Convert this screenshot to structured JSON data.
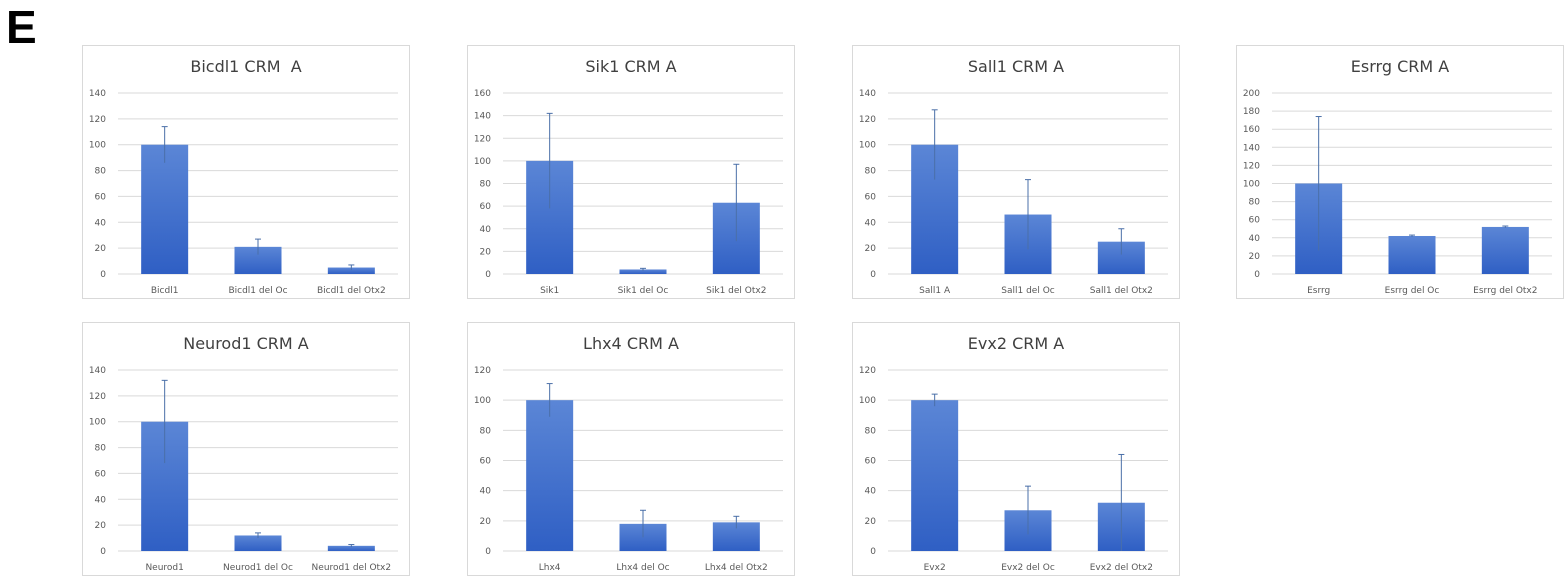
{
  "figure": {
    "panel_label": "E"
  },
  "chart_data": [
    {
      "type": "bar",
      "title": "Bicdl1 CRM  A",
      "categories": [
        "Bicdl1",
        "Bicdl1 del Oc",
        "Bicdl1 del Otx2"
      ],
      "values": [
        100,
        21,
        5
      ],
      "errors": [
        14,
        6,
        2
      ],
      "ylim": [
        0,
        140
      ],
      "ystep": 20,
      "xlabel": "",
      "ylabel": "",
      "grid": true,
      "legend": "none"
    },
    {
      "type": "bar",
      "title": "Sik1 CRM A",
      "categories": [
        "Sik1",
        "Sik1 del Oc",
        "Sik1 del Otx2"
      ],
      "values": [
        100,
        4,
        63
      ],
      "errors": [
        42,
        1,
        34
      ],
      "ylim": [
        0,
        160
      ],
      "ystep": 20,
      "xlabel": "",
      "ylabel": "",
      "grid": true,
      "legend": "none"
    },
    {
      "type": "bar",
      "title": "Sall1 CRM A",
      "categories": [
        "Sall1 A",
        "Sall1 del Oc",
        "Sall1 del Otx2"
      ],
      "values": [
        100,
        46,
        25
      ],
      "errors": [
        27,
        27,
        10
      ],
      "ylim": [
        0,
        140
      ],
      "ystep": 20,
      "xlabel": "",
      "ylabel": "",
      "grid": true,
      "legend": "none"
    },
    {
      "type": "bar",
      "title": "Esrrg CRM A",
      "categories": [
        "Esrrg",
        "Esrrg del Oc",
        "Esrrg del Otx2"
      ],
      "values": [
        100,
        42,
        52
      ],
      "errors": [
        74,
        1,
        1
      ],
      "ylim": [
        0,
        200
      ],
      "ystep": 20,
      "xlabel": "",
      "ylabel": "",
      "grid": true,
      "legend": "none"
    },
    {
      "type": "bar",
      "title": "Neurod1 CRM A",
      "categories": [
        "Neurod1",
        "Neurod1 del Oc",
        "Neurod1 del Otx2"
      ],
      "values": [
        100,
        12,
        4
      ],
      "errors": [
        32,
        2,
        1
      ],
      "ylim": [
        0,
        140
      ],
      "ystep": 20,
      "xlabel": "",
      "ylabel": "",
      "grid": true,
      "legend": "none"
    },
    {
      "type": "bar",
      "title": "Lhx4 CRM A",
      "categories": [
        "Lhx4",
        "Lhx4 del Oc",
        "Lhx4 del Otx2"
      ],
      "values": [
        100,
        18,
        19
      ],
      "errors": [
        11,
        9,
        4
      ],
      "ylim": [
        0,
        120
      ],
      "ystep": 20,
      "xlabel": "",
      "ylabel": "",
      "grid": true,
      "legend": "none"
    },
    {
      "type": "bar",
      "title": "Evx2 CRM A",
      "categories": [
        "Evx2",
        "Evx2 del Oc",
        "Evx2 del Otx2"
      ],
      "values": [
        100,
        27,
        32
      ],
      "errors": [
        4,
        16,
        32
      ],
      "ylim": [
        0,
        120
      ],
      "ystep": 20,
      "xlabel": "",
      "ylabel": "",
      "grid": true,
      "legend": "none"
    }
  ],
  "colors": {
    "bar_top": "#5b86d6",
    "bar_bottom": "#2f5fc4",
    "grid": "#d9d9d9",
    "axis_text": "#595959",
    "error_bar": "#4a6fa8"
  }
}
